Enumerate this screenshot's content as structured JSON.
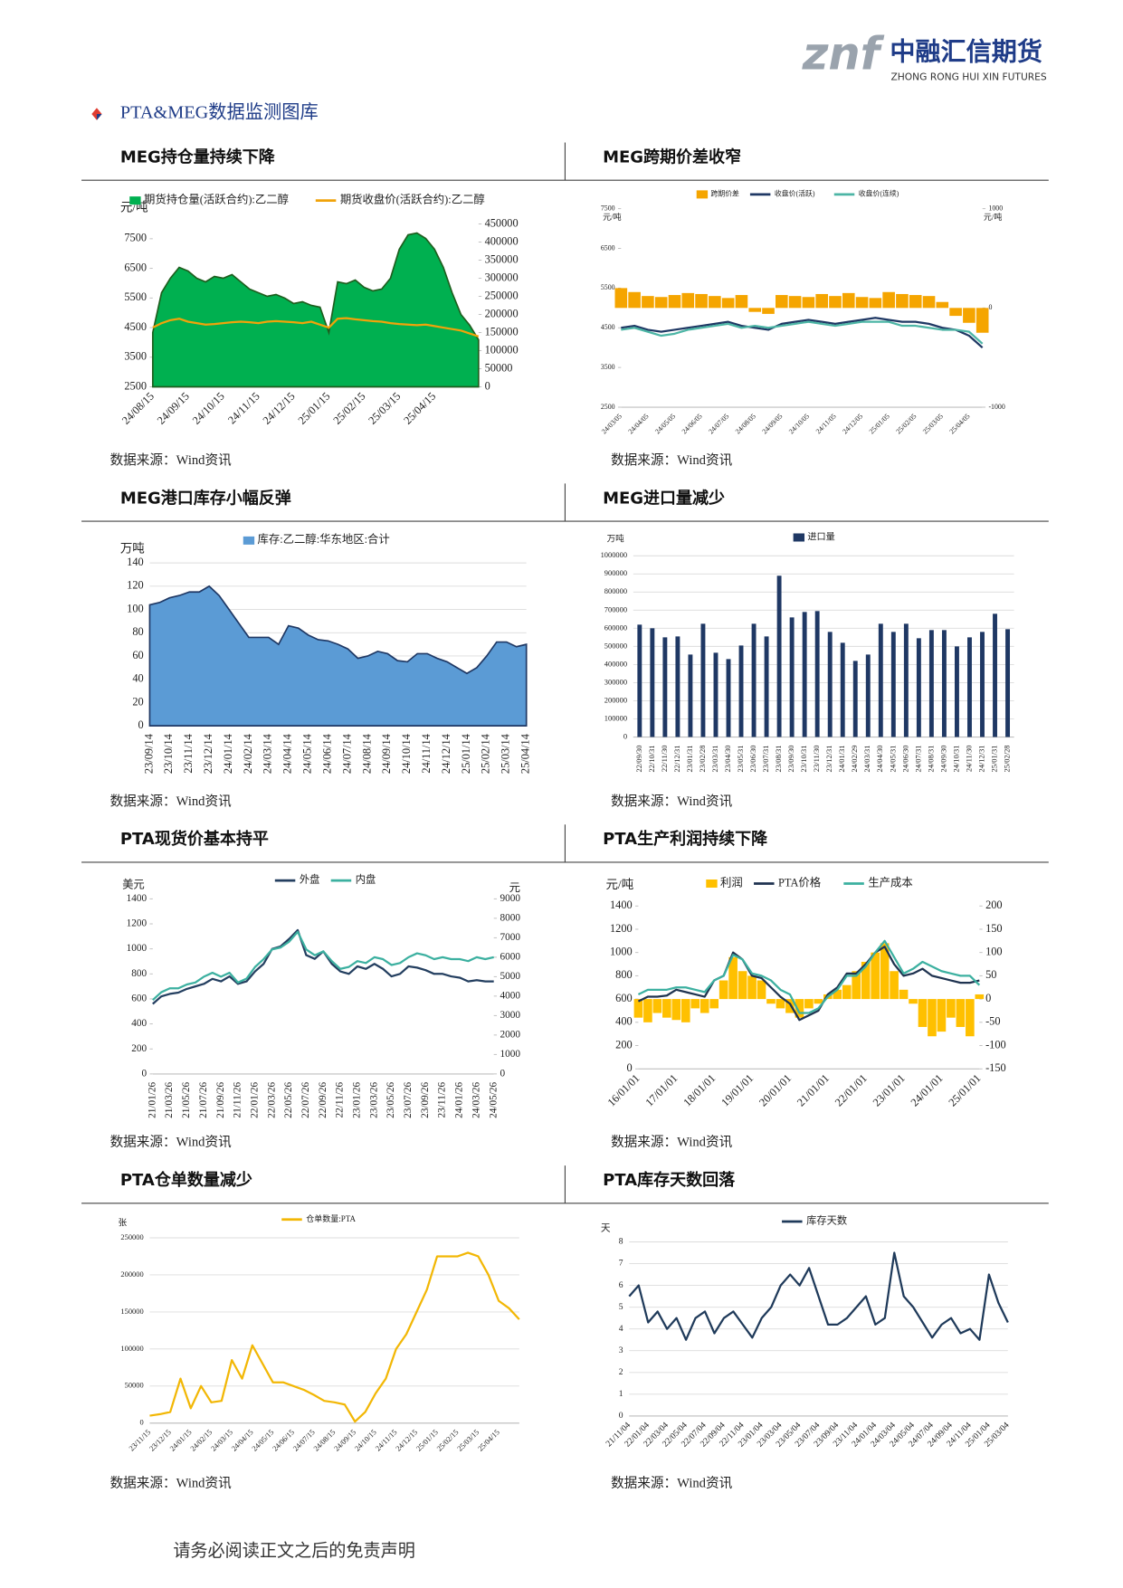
{
  "header": {
    "logo_mark": "znf",
    "company": "中融汇信期货",
    "company_en": "ZHONG RONG HUI XIN FUTURES"
  },
  "section_title": "PTA&MEG数据监测图库",
  "chart_data": [
    {
      "type": "combo",
      "title": "MEG持仓量持续下降",
      "source": "数据来源：Wind资讯",
      "unit": "元/吨",
      "legend": "top",
      "categories": [
        "24/08/15",
        null,
        null,
        null,
        "24/09/15",
        null,
        null,
        null,
        "24/10/15",
        null,
        null,
        null,
        "24/11/15",
        null,
        null,
        null,
        "24/12/15",
        null,
        null,
        null,
        "25/01/15",
        null,
        null,
        null,
        "25/02/15",
        null,
        null,
        null,
        "25/03/15",
        null,
        null,
        null,
        "25/04/15",
        null,
        null,
        null,
        null,
        null
      ],
      "ylim": [
        2500,
        8000
      ],
      "yticks": [
        2500,
        3500,
        4500,
        5500,
        6500,
        7500
      ],
      "y2lim": [
        0,
        450000
      ],
      "y2ticks": [
        0,
        50000,
        100000,
        150000,
        200000,
        250000,
        300000,
        350000,
        400000,
        450000
      ],
      "grid": false,
      "series": [
        {
          "name": "期货持仓量(活跃合约):乙二醇",
          "type": "area",
          "axis": "y2",
          "color": "#00b050",
          "line_color": "#1e5e1e",
          "values": [
            150000,
            260000,
            300000,
            330000,
            320000,
            300000,
            290000,
            305000,
            300000,
            310000,
            290000,
            270000,
            260000,
            250000,
            255000,
            245000,
            230000,
            235000,
            225000,
            220000,
            150000,
            290000,
            285000,
            295000,
            275000,
            265000,
            270000,
            300000,
            380000,
            420000,
            425000,
            410000,
            380000,
            330000,
            260000,
            200000,
            170000,
            130000
          ]
        },
        {
          "name": "期货收盘价(活跃合约):乙二醇",
          "type": "line",
          "color": "#f0a30a",
          "values": [
            4500,
            4650,
            4750,
            4800,
            4700,
            4650,
            4600,
            4620,
            4650,
            4680,
            4700,
            4680,
            4650,
            4700,
            4720,
            4700,
            4680,
            4650,
            4700,
            4600,
            4500,
            4800,
            4820,
            4780,
            4750,
            4720,
            4700,
            4650,
            4620,
            4600,
            4580,
            4600,
            4550,
            4500,
            4450,
            4400,
            4300,
            4200
          ]
        }
      ]
    },
    {
      "type": "combo",
      "title": "MEG跨期价差收窄",
      "source": "数据来源：Wind资讯",
      "unit": "元/吨",
      "unit2": "元/吨",
      "legend": "top",
      "categories": [
        "24/03/05",
        null,
        "24/04/05",
        null,
        "24/05/05",
        null,
        "24/06/05",
        null,
        "24/07/05",
        null,
        "24/08/05",
        null,
        "24/09/05",
        null,
        "24/10/05",
        null,
        "24/11/05",
        null,
        "24/12/05",
        null,
        "25/01/05",
        null,
        "25/02/05",
        null,
        "25/03/05",
        null,
        "25/04/05",
        null
      ],
      "ylim": [
        2500,
        7500
      ],
      "yticks": [
        2500,
        3500,
        4500,
        5500,
        6500,
        7500
      ],
      "y2lim": [
        -1000,
        1000
      ],
      "y2ticks": [
        -1000,
        0,
        1000
      ],
      "grid": false,
      "series": [
        {
          "name": "跨期价差",
          "type": "bar",
          "axis": "y2",
          "color": "#f5a500",
          "values": [
            200,
            160,
            120,
            110,
            130,
            150,
            140,
            120,
            100,
            130,
            -40,
            -60,
            130,
            120,
            110,
            140,
            120,
            150,
            110,
            100,
            160,
            140,
            130,
            120,
            60,
            -80,
            -150,
            -250
          ]
        },
        {
          "name": "收盘价(活跃)",
          "type": "line",
          "color": "#1f3864",
          "values": [
            4500,
            4550,
            4450,
            4400,
            4450,
            4500,
            4550,
            4600,
            4650,
            4550,
            4500,
            4450,
            4600,
            4650,
            4700,
            4650,
            4600,
            4650,
            4700,
            4750,
            4700,
            4650,
            4650,
            4600,
            4500,
            4450,
            4300,
            4000
          ]
        },
        {
          "name": "收盘价(连续)",
          "type": "line",
          "color": "#4cb5a5",
          "values": [
            4450,
            4500,
            4400,
            4300,
            4350,
            4450,
            4500,
            4550,
            4600,
            4500,
            4550,
            4500,
            4550,
            4600,
            4650,
            4600,
            4550,
            4600,
            4650,
            4650,
            4650,
            4550,
            4550,
            4500,
            4450,
            4450,
            4400,
            4100
          ]
        }
      ]
    },
    {
      "type": "area",
      "title": "MEG港口库存小幅反弹",
      "source": "数据来源：Wind资讯",
      "unit": "万吨",
      "legend": "top",
      "categories": [
        "23/09/14",
        null,
        "23/10/14",
        null,
        "23/11/14",
        null,
        "23/12/14",
        null,
        "24/01/14",
        null,
        "24/02/14",
        null,
        "24/03/14",
        null,
        "24/04/14",
        null,
        "24/05/14",
        null,
        "24/06/14",
        null,
        "24/07/14",
        null,
        "24/08/14",
        null,
        "24/09/14",
        null,
        "24/10/14",
        null,
        "24/11/14",
        null,
        "24/12/14",
        null,
        "25/01/14",
        null,
        "25/02/14",
        null,
        "25/03/14",
        null,
        "25/04/14"
      ],
      "ylim": [
        0,
        140
      ],
      "yticks": [
        0,
        20,
        40,
        60,
        80,
        100,
        120,
        140
      ],
      "grid": true,
      "series": [
        {
          "name": "库存:乙二醇:华东地区:合计",
          "color": "#5b9bd5",
          "line_color": "#1f3864",
          "values": [
            104,
            106,
            110,
            112,
            115,
            115,
            120,
            112,
            100,
            88,
            76,
            76,
            76,
            70,
            86,
            84,
            78,
            74,
            73,
            70,
            66,
            58,
            60,
            64,
            62,
            56,
            55,
            62,
            62,
            58,
            55,
            50,
            45,
            50,
            60,
            72,
            72,
            68,
            70
          ]
        }
      ]
    },
    {
      "type": "bar",
      "title": "MEG进口量减少",
      "source": "数据来源：Wind资讯",
      "unit": "万吨",
      "legend": "top",
      "categories": [
        "22/09/30",
        "22/10/31",
        "22/11/30",
        "22/12/31",
        "23/01/31",
        "23/02/28",
        "23/03/31",
        "23/04/30",
        "23/05/31",
        "23/06/30",
        "23/07/31",
        "23/08/31",
        "23/09/30",
        "23/10/31",
        "23/11/30",
        "23/12/31",
        "24/01/31",
        "24/02/29",
        "24/03/31",
        "24/04/30",
        "24/05/31",
        "24/06/30",
        "24/07/31",
        "24/08/31",
        "24/09/30",
        "24/10/31",
        "24/11/30",
        "24/12/31",
        "25/01/31",
        "25/02/28"
      ],
      "ylim": [
        0,
        1000000
      ],
      "yticks": [
        0,
        100000,
        200000,
        300000,
        400000,
        500000,
        600000,
        700000,
        800000,
        900000,
        1000000
      ],
      "grid": true,
      "series": [
        {
          "name": "进口量",
          "color": "#1f3864",
          "values": [
            620000,
            600000,
            550000,
            555000,
            455000,
            625000,
            465000,
            430000,
            505000,
            625000,
            555000,
            890000,
            660000,
            690000,
            695000,
            580000,
            520000,
            420000,
            455000,
            625000,
            580000,
            625000,
            545000,
            590000,
            590000,
            500000,
            550000,
            580000,
            680000,
            595000
          ]
        }
      ]
    },
    {
      "type": "line",
      "title": "PTA现货价基本持平",
      "source": "数据来源：Wind资讯",
      "unit": "美元",
      "unit2": "元",
      "legend": "top",
      "categories": [
        "21/01/26",
        null,
        "21/03/26",
        null,
        "21/05/26",
        null,
        "21/07/26",
        null,
        "21/09/26",
        null,
        "21/11/26",
        null,
        "22/01/26",
        null,
        "22/03/26",
        null,
        "22/05/26",
        null,
        "22/07/26",
        null,
        "22/09/26",
        null,
        "22/11/26",
        null,
        "23/01/26",
        null,
        "23/03/26",
        null,
        "23/05/26",
        null,
        "23/07/26",
        null,
        "23/09/26",
        null,
        "23/11/26",
        null,
        "24/01/26",
        null,
        "24/03/26",
        null,
        "24/05/26"
      ],
      "ylim": [
        0,
        1400
      ],
      "yticks": [
        0,
        200,
        400,
        600,
        800,
        1000,
        1200,
        1400
      ],
      "y2lim": [
        0,
        9000
      ],
      "y2ticks": [
        0,
        1000,
        2000,
        3000,
        4000,
        5000,
        6000,
        7000,
        8000,
        9000
      ],
      "grid": false,
      "series": [
        {
          "name": "外盘",
          "color": "#243f60",
          "values": [
            560,
            620,
            640,
            650,
            680,
            700,
            720,
            760,
            740,
            780,
            720,
            740,
            820,
            880,
            1000,
            1020,
            1080,
            1150,
            950,
            920,
            980,
            880,
            820,
            800,
            860,
            840,
            880,
            840,
            780,
            800,
            860,
            850,
            830,
            800,
            800,
            780,
            770,
            740,
            750,
            740,
            740
          ]
        },
        {
          "name": "内盘",
          "axis": "y2",
          "color": "#3cb0a0",
          "values": [
            3800,
            4200,
            4400,
            4400,
            4600,
            4700,
            5000,
            5200,
            5000,
            5200,
            4700,
            4900,
            5500,
            5900,
            6400,
            6500,
            6800,
            7300,
            6400,
            6100,
            6300,
            5800,
            5400,
            5500,
            5800,
            5700,
            6000,
            5900,
            5600,
            5700,
            6000,
            6200,
            6100,
            5900,
            6000,
            5900,
            5900,
            5800,
            6000,
            5900,
            6000
          ]
        }
      ]
    },
    {
      "type": "combo",
      "title": "PTA生产利润持续下降",
      "source": "数据来源：Wind资讯",
      "unit": "元/吨",
      "legend": "top",
      "categories": [
        "16/01/01",
        null,
        null,
        null,
        "17/01/01",
        null,
        null,
        null,
        "18/01/01",
        null,
        null,
        null,
        "19/01/01",
        null,
        null,
        null,
        "20/01/01",
        null,
        null,
        null,
        "21/01/01",
        null,
        null,
        null,
        "22/01/01",
        null,
        null,
        null,
        "23/01/01",
        null,
        null,
        null,
        "24/01/01",
        null,
        null,
        null,
        "25/01/01"
      ],
      "ylim": [
        0,
        1400
      ],
      "yticks": [
        0,
        200,
        400,
        600,
        800,
        1000,
        1200,
        1400
      ],
      "y2lim": [
        -150,
        200
      ],
      "y2ticks": [
        -150,
        -100,
        -50,
        0,
        50,
        100,
        150,
        200
      ],
      "grid": false,
      "series": [
        {
          "name": "利润",
          "type": "bar",
          "axis": "y2",
          "color": "#ffc000",
          "values": [
            -40,
            -50,
            -30,
            -40,
            -45,
            -50,
            -20,
            -30,
            -20,
            40,
            90,
            60,
            50,
            40,
            -10,
            -20,
            -30,
            -40,
            -20,
            -10,
            10,
            20,
            30,
            60,
            80,
            100,
            120,
            60,
            20,
            -10,
            -60,
            -80,
            -70,
            -40,
            -60,
            -80,
            10
          ]
        },
        {
          "name": "PTA价格",
          "type": "line",
          "color": "#1f3350",
          "values": [
            580,
            620,
            620,
            630,
            680,
            660,
            640,
            620,
            760,
            800,
            1000,
            940,
            800,
            780,
            700,
            620,
            560,
            420,
            460,
            500,
            640,
            700,
            820,
            820,
            900,
            1000,
            1050,
            900,
            800,
            820,
            860,
            800,
            780,
            760,
            740,
            740,
            760
          ]
        },
        {
          "name": "生产成本",
          "type": "line",
          "color": "#3cb0a0",
          "values": [
            640,
            680,
            680,
            680,
            700,
            700,
            680,
            660,
            760,
            800,
            980,
            940,
            820,
            800,
            760,
            680,
            640,
            480,
            480,
            520,
            620,
            680,
            800,
            800,
            880,
            1000,
            1100,
            960,
            820,
            860,
            920,
            880,
            840,
            820,
            800,
            800,
            720
          ]
        }
      ]
    },
    {
      "type": "line",
      "title": "PTA仓单数量减少",
      "source": "数据来源：Wind资讯",
      "unit": "张",
      "legend": "top",
      "categories": [
        "23/11/15",
        null,
        "23/12/15",
        null,
        "24/01/15",
        null,
        "24/02/15",
        null,
        "24/03/15",
        null,
        "24/04/15",
        null,
        "24/05/15",
        null,
        "24/06/15",
        null,
        "24/07/15",
        null,
        "24/08/15",
        null,
        "24/09/15",
        null,
        "24/10/15",
        null,
        "24/11/15",
        null,
        "24/12/15",
        null,
        "25/01/15",
        null,
        "25/02/15",
        null,
        "25/03/15",
        null,
        "25/04/15",
        null,
        null
      ],
      "ylim": [
        0,
        250000
      ],
      "yticks": [
        0,
        50000,
        100000,
        150000,
        200000,
        250000
      ],
      "grid": true,
      "series": [
        {
          "name": "仓单数量:PTA",
          "color": "#f2b705",
          "values": [
            10000,
            12000,
            15000,
            60000,
            20000,
            50000,
            28000,
            30000,
            85000,
            60000,
            105000,
            80000,
            55000,
            55000,
            50000,
            45000,
            38000,
            30000,
            28000,
            25000,
            2000,
            15000,
            40000,
            60000,
            100000,
            120000,
            150000,
            180000,
            225000,
            225000,
            225000,
            230000,
            225000,
            200000,
            165000,
            155000,
            140000
          ]
        }
      ]
    },
    {
      "type": "line",
      "title": "PTA库存天数回落",
      "source": "数据来源：Wind资讯",
      "unit": "天",
      "legend": "top",
      "categories": [
        "21/11/04",
        null,
        "22/01/04",
        null,
        "22/03/04",
        null,
        "22/05/04",
        null,
        "22/07/04",
        null,
        "22/09/04",
        null,
        "22/11/04",
        null,
        "23/01/04",
        null,
        "23/03/04",
        null,
        "23/05/04",
        null,
        "23/07/04",
        null,
        "23/09/04",
        null,
        "23/11/04",
        null,
        "24/01/04",
        null,
        "24/03/04",
        null,
        "24/05/04",
        null,
        "24/07/04",
        null,
        "24/09/04",
        null,
        "24/11/04",
        null,
        "25/01/04",
        null,
        "25/03/04"
      ],
      "ylim": [
        0,
        8
      ],
      "yticks": [
        0,
        1,
        2,
        3,
        4,
        5,
        6,
        7,
        8
      ],
      "grid": true,
      "series": [
        {
          "name": "库存天数",
          "color": "#1f3a5a",
          "values": [
            5.5,
            6,
            4.3,
            4.8,
            4,
            4.5,
            3.5,
            4.5,
            4.8,
            3.8,
            4.5,
            4.8,
            4.2,
            3.6,
            4.5,
            5,
            6,
            6.5,
            6,
            6.8,
            5.5,
            4.2,
            4.2,
            4.5,
            5,
            5.5,
            4.2,
            4.5,
            7.5,
            5.5,
            5,
            4.3,
            3.6,
            4.2,
            4.5,
            3.8,
            4,
            3.5,
            6.5,
            5.2,
            4.3
          ]
        }
      ]
    }
  ],
  "footer": "请务必阅读正文之后的免责声明"
}
